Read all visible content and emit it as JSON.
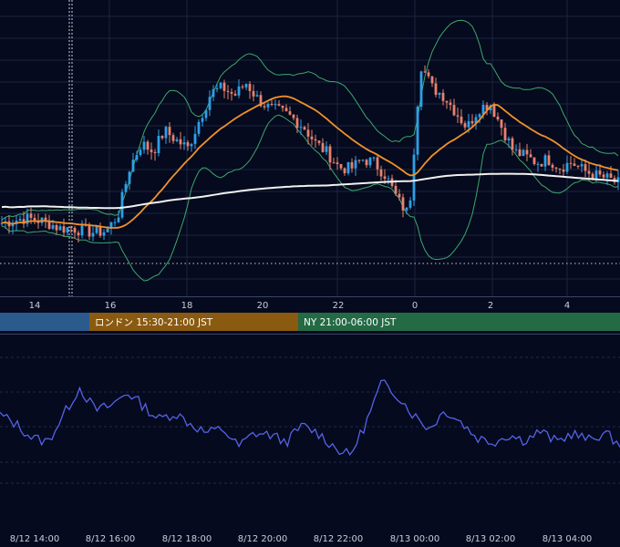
{
  "colors": {
    "background": "#050a1e",
    "grid": "#1b2440",
    "candle_up": "#2ea0e8",
    "candle_down": "#e8826f",
    "ma_slow": "#f2f2f2",
    "ma_fast": "#f0912a",
    "bollinger": "#3fa66a",
    "oscillator": "#5563e8",
    "session_asia": "#2b5a8c",
    "session_london": "#8a5a10",
    "session_ny": "#236a45"
  },
  "sessions": [
    {
      "label": "",
      "start": 0,
      "end": 98
    },
    {
      "label": "ロンドン 15:30-21:00 JST",
      "start": 98,
      "end": 327
    },
    {
      "label": "NY 21:00-06:00 JST",
      "start": 327,
      "end": 680
    }
  ],
  "main_x_ticks": [
    "14",
    "16",
    "18",
    "20",
    "22",
    "0",
    "2",
    "4"
  ],
  "bottom_x_ticks": [
    "8/12 14:00",
    "8/12 16:00",
    "8/12 18:00",
    "8/12 20:00",
    "8/12 22:00",
    "8/13 00:00",
    "8/13 02:00",
    "8/13 04:00"
  ],
  "chart_data": [
    {
      "type": "candlestick",
      "x_hours": [
        13.0,
        15.0,
        17.0,
        19.0,
        21.0,
        23.0,
        1.0,
        3.0,
        5.0
      ],
      "overlays": [
        "moving_average_slow",
        "moving_average_fast",
        "bollinger_bands"
      ],
      "close_path": [
        0.0,
        0.015,
        0.03,
        0.02,
        0.0,
        -0.035,
        -0.03,
        -0.05,
        -0.06,
        -0.05,
        0.05,
        0.35,
        0.5,
        0.45,
        0.58,
        0.52,
        0.47,
        0.65,
        0.82,
        0.85,
        0.8,
        0.88,
        0.78,
        0.72,
        0.7,
        0.66,
        0.6,
        0.5,
        0.44,
        0.35,
        0.34,
        0.4,
        0.38,
        0.3,
        0.15,
        0.05,
        1.0,
        0.85,
        0.8,
        0.7,
        0.6,
        0.72,
        0.75,
        0.6,
        0.45,
        0.42,
        0.38,
        0.4,
        0.35,
        0.38,
        0.33,
        0.3,
        0.28,
        0.25
      ]
    },
    {
      "type": "line",
      "series": [
        {
          "values": [
            0.5,
            0.4,
            0.25,
            0.2,
            0.5,
            0.8,
            0.55,
            0.6,
            0.75,
            0.6,
            0.45,
            0.52,
            0.4,
            0.3,
            0.35,
            0.15,
            0.3,
            0.28,
            0.2,
            0.38,
            0.3,
            0.15,
            0.05,
            0.4,
            0.85,
            0.72,
            0.5,
            0.35,
            0.55,
            0.42,
            0.25,
            0.2,
            0.28,
            0.22,
            0.32,
            0.2,
            0.3,
            0.22,
            0.3,
            0.18
          ]
        }
      ]
    }
  ]
}
